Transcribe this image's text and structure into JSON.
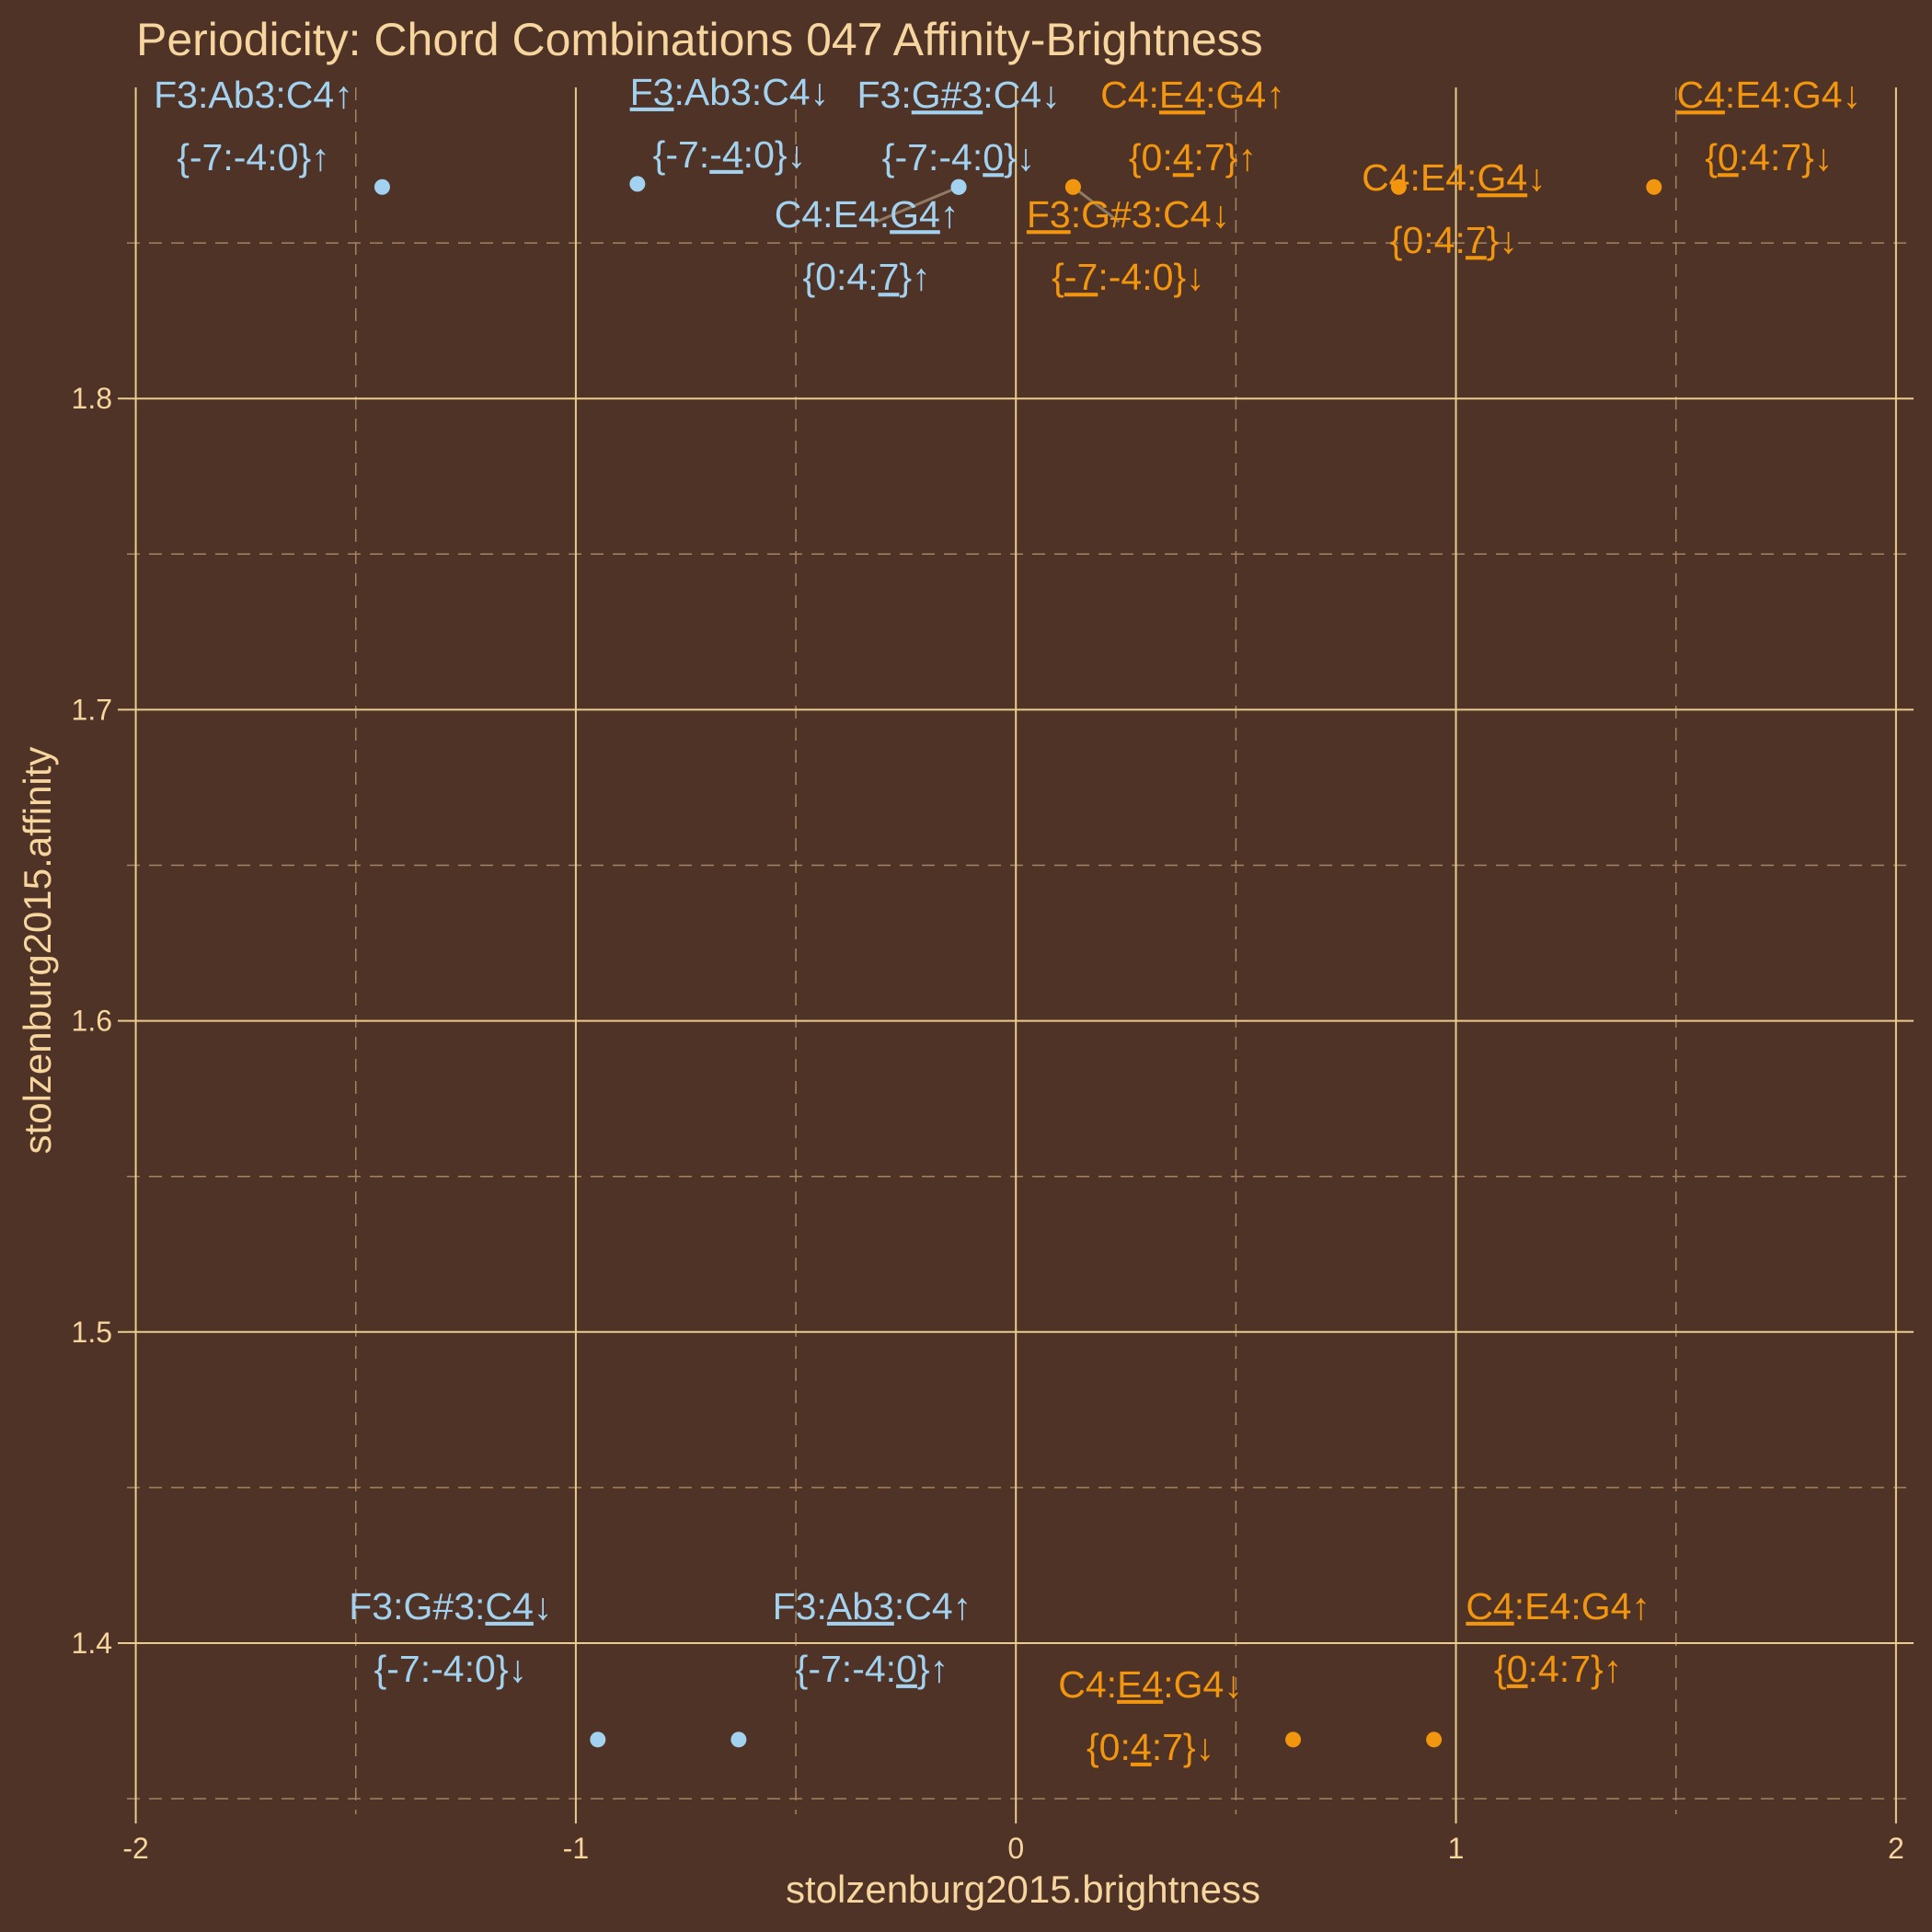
{
  "chart_data": {
    "type": "scatter",
    "title": "Periodicity: Chord Combinations 047 Affinity-Brightness",
    "xlabel": "stolzenburg2015.brightness",
    "ylabel": "stolzenburg2015.affinity",
    "xlim": [
      -2.02,
      2.04
    ],
    "ylim": [
      1.345,
      1.9
    ],
    "x_ticks": [
      -2,
      -1,
      0,
      1,
      2
    ],
    "x_tick_labels": [
      "-2",
      "-1",
      "0",
      "1",
      "2"
    ],
    "y_ticks": [
      1.4,
      1.5,
      1.6,
      1.7,
      1.8
    ],
    "y_tick_labels": [
      "1.4",
      "1.5",
      "1.6",
      "1.7",
      "1.8"
    ],
    "grid": true,
    "legend": "none",
    "colors": {
      "background": "#4f3326",
      "series_a": "#a3d2f0",
      "series_b": "#f2960f",
      "text": "#f6d59f",
      "leader": "#8f7a63"
    },
    "series": [
      {
        "color": "#a3d2f0",
        "points": [
          {
            "x": -1.44,
            "y": 1.868,
            "label": [
              "F3:Ab3:C4↑",
              "{-7:-4:0}↑"
            ]
          },
          {
            "x": -0.86,
            "y": 1.869,
            "label": [
              "F3:Ab3:C4↓",
              "{-7:-4:0}↓"
            ]
          },
          {
            "x": -0.13,
            "y": 1.868,
            "label": [
              "F3:G#3:C4↓",
              "{-7:-4:0}↓"
            ]
          },
          {
            "x": -0.13,
            "y": 1.868,
            "label": [
              "C4:E4:G4↑",
              "{0:4:7}↑"
            ]
          },
          {
            "x": -0.95,
            "y": 1.369,
            "label": [
              "F3:G#3:C4↓",
              "{-7:-4:0}↓"
            ]
          },
          {
            "x": -0.63,
            "y": 1.369,
            "label": [
              "F3:Ab3:C4↑",
              "{-7:-4:0}↑"
            ]
          }
        ]
      },
      {
        "color": "#f2960f",
        "points": [
          {
            "x": 0.13,
            "y": 1.868,
            "label": [
              "C4:E4:G4↑",
              "{0:4:7}↑"
            ]
          },
          {
            "x": 0.13,
            "y": 1.868,
            "label": [
              "F3:G#3:C4↓",
              "{-7:-4:0}↓"
            ]
          },
          {
            "x": 0.87,
            "y": 1.868,
            "label": [
              "C4:E4:G4↓",
              "{0:4:7}↓"
            ]
          },
          {
            "x": 1.45,
            "y": 1.868,
            "label": [
              "C4:E4:G4↓",
              "{0:4:7}↓"
            ]
          },
          {
            "x": 0.63,
            "y": 1.369,
            "label": [
              "C4:E4:G4↓",
              "{0:4:7}↓"
            ]
          },
          {
            "x": 0.95,
            "y": 1.369,
            "label": [
              "C4:E4:G4↑",
              "{0:4:7}↑"
            ]
          }
        ]
      }
    ]
  }
}
